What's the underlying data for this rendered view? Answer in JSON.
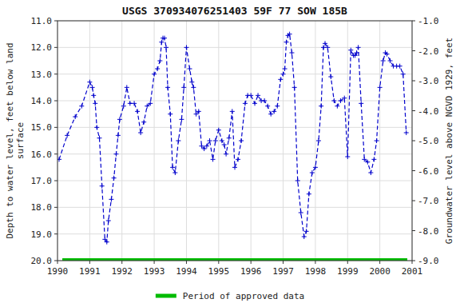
{
  "chart_data": {
    "type": "line",
    "title": "USGS 370934076251403 59F 77 SOW 185B",
    "ylabel": "Depth to water level, feet below land\nsurface",
    "y2label": "Groundwater level above NGVD 1929, feet",
    "x": [
      1990.05,
      1990.3,
      1990.55,
      1990.75,
      1991.0,
      1991.08,
      1991.12,
      1991.17,
      1991.22,
      1991.3,
      1991.38,
      1991.47,
      1991.53,
      1991.58,
      1991.67,
      1991.75,
      1991.82,
      1991.88,
      1991.93,
      1992.05,
      1992.15,
      1992.25,
      1992.38,
      1992.48,
      1992.58,
      1992.68,
      1992.78,
      1992.88,
      1993.0,
      1993.1,
      1993.18,
      1993.23,
      1993.27,
      1993.32,
      1993.37,
      1993.42,
      1993.5,
      1993.57,
      1993.65,
      1993.75,
      1993.85,
      1993.92,
      1994.0,
      1994.1,
      1994.17,
      1994.22,
      1994.3,
      1994.38,
      1994.47,
      1994.55,
      1994.63,
      1994.72,
      1994.82,
      1994.9,
      1995.0,
      1995.1,
      1995.17,
      1995.23,
      1995.32,
      1995.42,
      1995.5,
      1995.6,
      1995.7,
      1995.82,
      1995.9,
      1996.0,
      1996.12,
      1996.22,
      1996.32,
      1996.42,
      1996.52,
      1996.62,
      1996.72,
      1996.82,
      1996.92,
      1997.0,
      1997.05,
      1997.1,
      1997.15,
      1997.2,
      1997.27,
      1997.35,
      1997.45,
      1997.55,
      1997.65,
      1997.72,
      1997.8,
      1997.9,
      1998.0,
      1998.1,
      1998.18,
      1998.25,
      1998.3,
      1998.38,
      1998.48,
      1998.58,
      1998.68,
      1998.78,
      1998.9,
      1999.0,
      1999.1,
      1999.18,
      1999.23,
      1999.28,
      1999.33,
      1999.42,
      1999.52,
      1999.62,
      1999.72,
      1999.82,
      1999.9,
      2000.0,
      2000.1,
      2000.17,
      2000.22,
      2000.32,
      2000.42,
      2000.52,
      2000.62,
      2000.72,
      2000.82
    ],
    "series": [
      {
        "color": "#0000cc",
        "marker": "plus",
        "line_style": "dashed",
        "values": [
          16.2,
          15.3,
          14.6,
          14.2,
          13.3,
          13.5,
          13.8,
          14.1,
          15.0,
          15.4,
          17.2,
          19.2,
          19.3,
          18.5,
          17.7,
          16.9,
          16.0,
          15.3,
          14.7,
          14.2,
          13.5,
          14.1,
          14.1,
          14.4,
          15.2,
          14.8,
          14.2,
          14.1,
          13.0,
          12.8,
          12.5,
          11.8,
          11.65,
          11.65,
          12.0,
          13.5,
          14.5,
          16.5,
          16.7,
          15.5,
          14.7,
          13.5,
          12.0,
          12.8,
          13.3,
          13.5,
          14.5,
          14.4,
          15.7,
          15.8,
          15.7,
          15.5,
          16.2,
          15.5,
          15.1,
          15.5,
          15.65,
          16.0,
          15.4,
          14.4,
          16.5,
          16.2,
          15.5,
          14.1,
          13.8,
          13.8,
          14.1,
          13.8,
          14.0,
          14.0,
          14.2,
          14.5,
          14.4,
          14.2,
          13.2,
          13.0,
          12.8,
          11.8,
          11.55,
          11.5,
          12.2,
          13.5,
          17.0,
          18.2,
          19.1,
          18.9,
          17.5,
          16.7,
          16.5,
          15.5,
          14.2,
          12.0,
          11.85,
          12.0,
          13.1,
          14.0,
          14.2,
          14.0,
          13.9,
          16.1,
          12.1,
          12.3,
          12.3,
          12.2,
          12.0,
          14.1,
          16.2,
          16.3,
          16.7,
          16.2,
          15.5,
          13.5,
          12.5,
          12.2,
          12.25,
          12.5,
          12.7,
          12.7,
          12.7,
          13.0,
          15.2
        ]
      }
    ],
    "period": {
      "name": "Period of approved data",
      "color": "#00bb00",
      "start": 1990.15,
      "end": 2000.85,
      "y": 20.0
    },
    "xlim": [
      1990.0,
      2001.0
    ],
    "xticks": [
      1990,
      1991,
      1992,
      1993,
      1994,
      1995,
      1996,
      1997,
      1998,
      1999,
      2000,
      2001
    ],
    "ylim": [
      20.0,
      11.0
    ],
    "yticks": [
      {
        "value": 11.0,
        "label": "11.0"
      },
      {
        "value": 12.0,
        "label": "12.0"
      },
      {
        "value": 13.0,
        "label": "13.0"
      },
      {
        "value": 14.0,
        "label": "14.0"
      },
      {
        "value": 15.0,
        "label": "15.0"
      },
      {
        "value": 16.0,
        "label": "16.0"
      },
      {
        "value": 17.0,
        "label": "17.0"
      },
      {
        "value": 18.0,
        "label": "18.0"
      },
      {
        "value": 19.0,
        "label": "19.0"
      },
      {
        "value": 20.0,
        "label": "20.0"
      }
    ],
    "y2lim": [
      -9.0,
      -1.0
    ],
    "y2ticks": [
      {
        "value": -1.0,
        "label": "-1.0"
      },
      {
        "value": -2.0,
        "label": "-2.0"
      },
      {
        "value": -3.0,
        "label": "-3.0"
      },
      {
        "value": -4.0,
        "label": "-4.0"
      },
      {
        "value": -5.0,
        "label": "-5.0"
      },
      {
        "value": -6.0,
        "label": "-6.0"
      },
      {
        "value": -7.0,
        "label": "-7.0"
      },
      {
        "value": -8.0,
        "label": "-8.0"
      },
      {
        "value": -9.0,
        "label": "-9.0"
      }
    ],
    "grid": true,
    "legend": "bottom"
  }
}
